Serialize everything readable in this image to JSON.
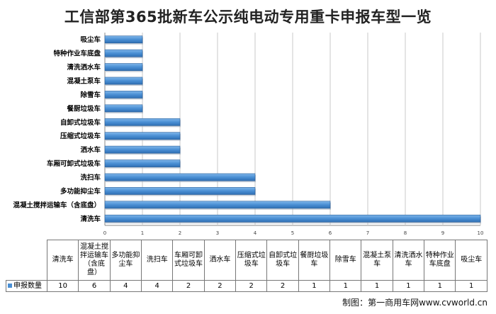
{
  "title": "工信部第365批新车公示纯电动专用重卡申报车型一览",
  "credit": "制图：第一商用车网www.cvworld.cn",
  "chart_data": {
    "type": "bar",
    "orientation": "horizontal",
    "title": "工信部第365批新车公示纯电动专用重卡申报车型一览",
    "categories": [
      "清洗车",
      "混凝土搅拌运输车（含底盘）",
      "多功能抑尘车",
      "洗扫车",
      "车厢可卸式垃圾车",
      "洒水车",
      "压缩式垃圾车",
      "自卸式垃圾车",
      "餐厨垃圾车",
      "除雪车",
      "混凝土泵车",
      "清洗洒水车",
      "特种作业车底盘",
      "吸尘车"
    ],
    "series": [
      {
        "name": "申报数量",
        "values": [
          10,
          6,
          4,
          4,
          2,
          2,
          2,
          2,
          1,
          1,
          1,
          1,
          1,
          1
        ]
      }
    ],
    "xlim": [
      0,
      10
    ],
    "xticks": [
      0,
      1,
      2,
      3,
      4,
      5,
      6,
      7,
      8,
      9,
      10
    ],
    "grid": true,
    "legend": "bottom-left",
    "color": "#4a8fd4"
  },
  "table": {
    "headers": [
      "清洗车",
      "混凝土搅拌运输车（含底盘）",
      "多功能抑尘车",
      "洗扫车",
      "车厢可卸式垃圾车",
      "洒水车",
      "压缩式垃圾车",
      "自卸式垃圾车",
      "餐厨垃圾车",
      "除雪车",
      "混凝土泵车",
      "清洗洒水车",
      "特种作业车底盘",
      "吸尘车"
    ],
    "series_label": "申报数量",
    "values": [
      "10",
      "6",
      "4",
      "4",
      "2",
      "2",
      "2",
      "2",
      "1",
      "1",
      "1",
      "1",
      "1",
      "1"
    ]
  }
}
